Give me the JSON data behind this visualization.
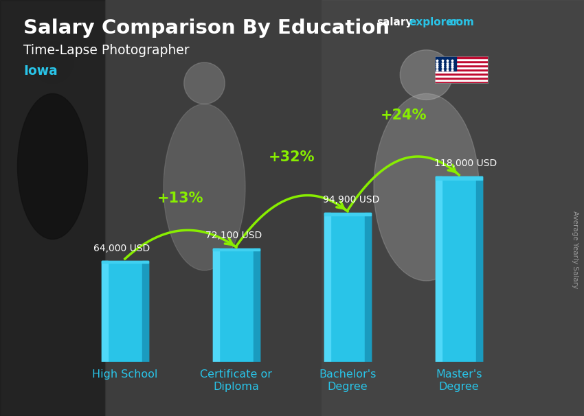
{
  "title_main": "Salary Comparison By Education",
  "subtitle": "Time-Lapse Photographer",
  "location": "Iowa",
  "ylabel": "Average Yearly Salary",
  "categories": [
    "High School",
    "Certificate or\nDiploma",
    "Bachelor's\nDegree",
    "Master's\nDegree"
  ],
  "values": [
    64000,
    72100,
    94900,
    118000
  ],
  "value_labels": [
    "64,000 USD",
    "72,100 USD",
    "94,900 USD",
    "118,000 USD"
  ],
  "pct_labels": [
    "+13%",
    "+32%",
    "+24%"
  ],
  "bar_color_main": "#29C4E8",
  "bar_color_left": "#50D8F8",
  "bar_color_dark": "#1A9BBF",
  "bar_color_top": "#40D0F0",
  "pct_color": "#88EE00",
  "bg_color": "#3a3a3a",
  "title_color": "#FFFFFF",
  "subtitle_color": "#FFFFFF",
  "location_color": "#29C4E8",
  "value_label_color": "#FFFFFF",
  "ylabel_color": "#999999",
  "wm_salary_color": "#FFFFFF",
  "wm_explorer_color": "#29C4E8",
  "wm_com_color": "#29C4E8",
  "xlabel_color": "#29C4E8",
  "ylim": [
    0,
    148000
  ],
  "figsize": [
    8.5,
    6.06
  ],
  "dpi": 100
}
